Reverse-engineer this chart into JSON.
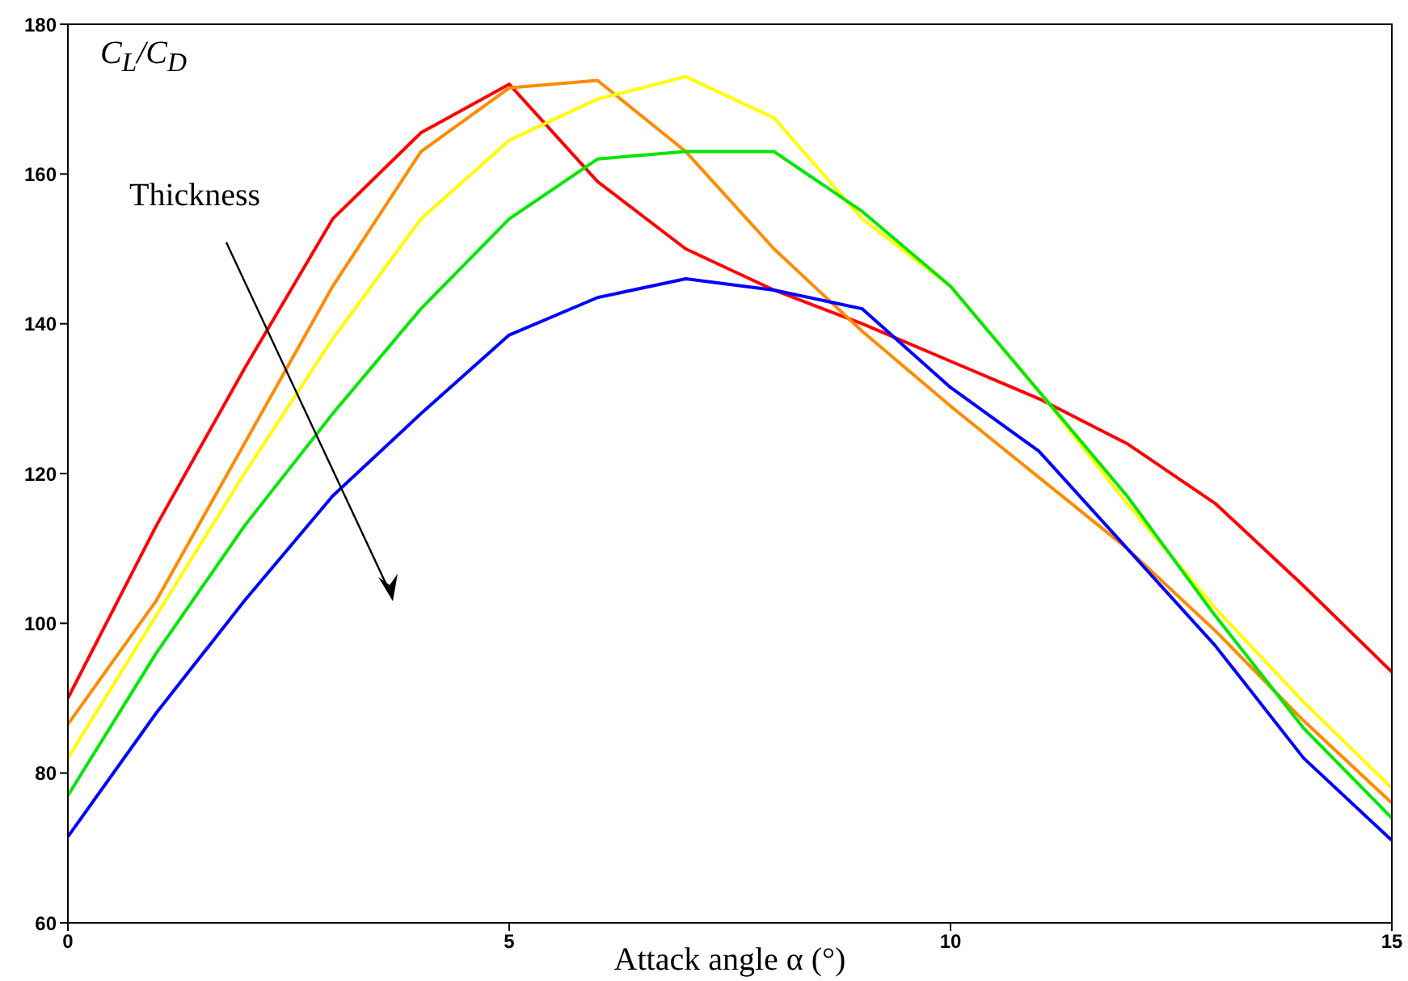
{
  "chart_data": {
    "type": "line",
    "ylabel": "C$_{L}$/C$_{D}$",
    "xlabel": "Attack angle α (°)",
    "annotations": [
      "Thickness"
    ],
    "x": [
      0,
      1,
      2,
      3,
      4,
      5,
      6,
      7,
      8,
      9,
      10,
      11,
      12,
      13,
      14,
      15
    ],
    "xlim": [
      0,
      15
    ],
    "xticks": [
      0,
      5,
      10,
      15
    ],
    "ylim": [
      60,
      180
    ],
    "yticks": [
      60,
      80,
      100,
      120,
      140,
      160,
      180
    ],
    "grid": false,
    "legend": false,
    "marker": "none",
    "line_style": "solid",
    "series": [
      {
        "color": "#ff0000",
        "values": [
          90,
          113,
          134,
          154,
          165.5,
          172,
          159,
          150,
          144.5,
          140,
          135,
          130,
          124,
          116,
          105,
          93.5
        ]
      },
      {
        "color": "#ff8c00",
        "values": [
          86.5,
          103,
          124,
          145,
          163,
          171.5,
          172.5,
          163,
          150,
          139,
          129,
          119.5,
          110,
          99,
          87,
          76
        ]
      },
      {
        "color": "#ffff00",
        "values": [
          82,
          101,
          120,
          138,
          154,
          164.5,
          170,
          173,
          167.5,
          154,
          145,
          131,
          116,
          102,
          89.5,
          78
        ]
      },
      {
        "color": "#00e600",
        "values": [
          77,
          96,
          113,
          128,
          142,
          154,
          162,
          163,
          163,
          155,
          145,
          131,
          117,
          101,
          86,
          74
        ]
      },
      {
        "color": "#0000ff",
        "values": [
          71.5,
          88,
          103,
          117,
          128,
          138.5,
          143.5,
          146,
          144.5,
          142,
          131.5,
          123,
          110,
          97,
          82,
          71
        ]
      }
    ]
  }
}
